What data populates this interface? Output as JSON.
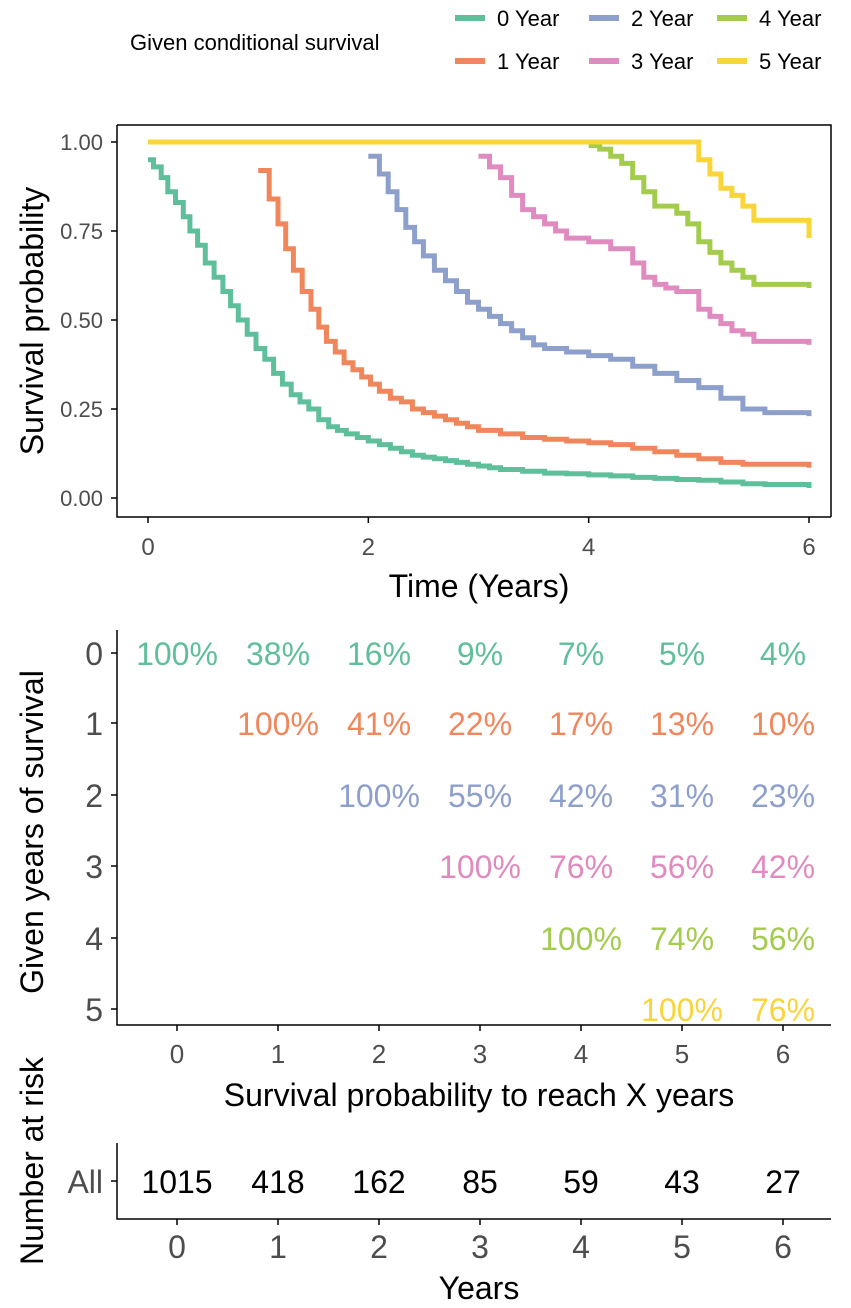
{
  "colors": {
    "c0": "#5fbf9b",
    "c1": "#ef865c",
    "c2": "#8d9fcb",
    "c3": "#e08bc0",
    "c4": "#a3cc4f",
    "c5": "#f9d43a",
    "axis": "#000000",
    "tick_label": "#4d4d4d"
  },
  "chart_data": [
    {
      "type": "line",
      "subtype": "step",
      "title": "",
      "legend": {
        "title": "Given conditional survival",
        "position": "top",
        "entries": [
          "0 Year",
          "1 Year",
          "2 Year",
          "3 Year",
          "4 Year",
          "5 Year"
        ]
      },
      "xlabel": "Time (Years)",
      "ylabel": "Survival probability",
      "xlim": [
        -0.3,
        6.3
      ],
      "ylim": [
        -0.05,
        1.05
      ],
      "xticks": [
        0,
        2,
        4,
        6
      ],
      "xtick_labels": [
        "0",
        "2",
        "4",
        "6"
      ],
      "yticks": [
        0,
        0.25,
        0.5,
        0.75,
        1
      ],
      "ytick_labels": [
        "0.00",
        "0.25",
        "0.50",
        "0.75",
        "1.00"
      ],
      "grid": false,
      "series": [
        {
          "name": "0 Year",
          "x": [
            0.0,
            0.05,
            0.12,
            0.18,
            0.25,
            0.32,
            0.38,
            0.45,
            0.52,
            0.6,
            0.68,
            0.75,
            0.82,
            0.9,
            0.98,
            1.06,
            1.14,
            1.22,
            1.3,
            1.38,
            1.46,
            1.55,
            1.64,
            1.72,
            1.8,
            1.9,
            2.0,
            2.1,
            2.2,
            2.3,
            2.4,
            2.5,
            2.6,
            2.7,
            2.8,
            2.9,
            3.0,
            3.1,
            3.2,
            3.4,
            3.6,
            3.8,
            4.0,
            4.2,
            4.4,
            4.6,
            4.8,
            5.0,
            5.2,
            5.4,
            5.6,
            5.8,
            6.0
          ],
          "y": [
            0.95,
            0.93,
            0.9,
            0.86,
            0.83,
            0.79,
            0.75,
            0.71,
            0.66,
            0.62,
            0.58,
            0.54,
            0.5,
            0.46,
            0.42,
            0.39,
            0.35,
            0.32,
            0.29,
            0.27,
            0.25,
            0.22,
            0.2,
            0.19,
            0.18,
            0.17,
            0.16,
            0.15,
            0.14,
            0.13,
            0.12,
            0.115,
            0.11,
            0.105,
            0.1,
            0.095,
            0.09,
            0.085,
            0.08,
            0.075,
            0.07,
            0.068,
            0.065,
            0.062,
            0.058,
            0.055,
            0.052,
            0.05,
            0.045,
            0.04,
            0.038,
            0.038,
            0.038
          ]
        },
        {
          "name": "1 Year",
          "x": [
            1.0,
            1.1,
            1.18,
            1.25,
            1.32,
            1.4,
            1.48,
            1.55,
            1.62,
            1.7,
            1.78,
            1.86,
            1.94,
            2.02,
            2.1,
            2.2,
            2.3,
            2.4,
            2.5,
            2.6,
            2.7,
            2.8,
            2.9,
            3.0,
            3.2,
            3.4,
            3.6,
            3.8,
            4.0,
            4.2,
            4.4,
            4.6,
            4.8,
            5.0,
            5.2,
            5.4,
            5.6,
            6.0
          ],
          "y": [
            0.92,
            0.84,
            0.77,
            0.7,
            0.64,
            0.58,
            0.53,
            0.48,
            0.44,
            0.41,
            0.38,
            0.36,
            0.34,
            0.32,
            0.3,
            0.28,
            0.27,
            0.25,
            0.24,
            0.23,
            0.22,
            0.21,
            0.2,
            0.19,
            0.18,
            0.17,
            0.165,
            0.16,
            0.155,
            0.15,
            0.14,
            0.13,
            0.12,
            0.11,
            0.1,
            0.095,
            0.095,
            0.095
          ]
        },
        {
          "name": "2 Year",
          "x": [
            2.0,
            2.1,
            2.18,
            2.26,
            2.34,
            2.42,
            2.5,
            2.6,
            2.7,
            2.8,
            2.9,
            3.0,
            3.1,
            3.2,
            3.3,
            3.4,
            3.5,
            3.6,
            3.8,
            4.0,
            4.2,
            4.4,
            4.6,
            4.8,
            5.0,
            5.2,
            5.4,
            5.6,
            6.0
          ],
          "y": [
            0.96,
            0.91,
            0.86,
            0.81,
            0.76,
            0.72,
            0.68,
            0.64,
            0.61,
            0.58,
            0.55,
            0.53,
            0.51,
            0.49,
            0.47,
            0.45,
            0.43,
            0.42,
            0.41,
            0.4,
            0.39,
            0.37,
            0.35,
            0.33,
            0.31,
            0.28,
            0.25,
            0.24,
            0.24
          ]
        },
        {
          "name": "3 Year",
          "x": [
            3.0,
            3.1,
            3.2,
            3.3,
            3.4,
            3.5,
            3.6,
            3.7,
            3.8,
            4.0,
            4.2,
            4.4,
            4.5,
            4.6,
            4.7,
            4.8,
            5.0,
            5.1,
            5.2,
            5.3,
            5.4,
            5.5,
            5.6,
            6.0
          ],
          "y": [
            0.96,
            0.93,
            0.9,
            0.85,
            0.81,
            0.79,
            0.77,
            0.75,
            0.73,
            0.72,
            0.7,
            0.66,
            0.62,
            0.6,
            0.59,
            0.58,
            0.53,
            0.51,
            0.49,
            0.47,
            0.46,
            0.44,
            0.44,
            0.44
          ]
        },
        {
          "name": "4 Year",
          "x": [
            4.0,
            4.1,
            4.2,
            4.3,
            4.4,
            4.5,
            4.6,
            4.7,
            4.8,
            4.9,
            5.0,
            5.1,
            5.2,
            5.3,
            5.4,
            5.5,
            5.6,
            6.0
          ],
          "y": [
            0.99,
            0.98,
            0.96,
            0.94,
            0.9,
            0.86,
            0.82,
            0.82,
            0.8,
            0.77,
            0.72,
            0.69,
            0.66,
            0.64,
            0.62,
            0.6,
            0.6,
            0.6
          ]
        },
        {
          "name": "5 Year",
          "x": [
            0.0,
            5.0,
            5.1,
            5.2,
            5.3,
            5.4,
            5.5,
            5.6,
            6.0
          ],
          "y": [
            1.0,
            0.95,
            0.91,
            0.87,
            0.85,
            0.82,
            0.78,
            0.78,
            0.78
          ]
        }
      ]
    },
    {
      "type": "table",
      "title": "",
      "xlabel": "Survival probability to reach X years",
      "ylabel": "Given years of survival",
      "columns": [
        "0",
        "1",
        "2",
        "3",
        "4",
        "5",
        "6"
      ],
      "rows": [
        {
          "label": "0",
          "cells": [
            {
              "col": 0,
              "text": "100%"
            },
            {
              "col": 1,
              "text": "38%"
            },
            {
              "col": 2,
              "text": "16%"
            },
            {
              "col": 3,
              "text": "9%"
            },
            {
              "col": 4,
              "text": "7%"
            },
            {
              "col": 5,
              "text": "5%"
            },
            {
              "col": 6,
              "text": "4%"
            }
          ]
        },
        {
          "label": "1",
          "cells": [
            {
              "col": 1,
              "text": "100%"
            },
            {
              "col": 2,
              "text": "41%"
            },
            {
              "col": 3,
              "text": "22%"
            },
            {
              "col": 4,
              "text": "17%"
            },
            {
              "col": 5,
              "text": "13%"
            },
            {
              "col": 6,
              "text": "10%"
            }
          ]
        },
        {
          "label": "2",
          "cells": [
            {
              "col": 2,
              "text": "100%"
            },
            {
              "col": 3,
              "text": "55%"
            },
            {
              "col": 4,
              "text": "42%"
            },
            {
              "col": 5,
              "text": "31%"
            },
            {
              "col": 6,
              "text": "23%"
            }
          ]
        },
        {
          "label": "3",
          "cells": [
            {
              "col": 3,
              "text": "100%"
            },
            {
              "col": 4,
              "text": "76%"
            },
            {
              "col": 5,
              "text": "56%"
            },
            {
              "col": 6,
              "text": "42%"
            }
          ]
        },
        {
          "label": "4",
          "cells": [
            {
              "col": 4,
              "text": "100%"
            },
            {
              "col": 5,
              "text": "74%"
            },
            {
              "col": 6,
              "text": "56%"
            }
          ]
        },
        {
          "label": "5",
          "cells": [
            {
              "col": 5,
              "text": "100%"
            },
            {
              "col": 6,
              "text": "76%"
            }
          ]
        }
      ]
    },
    {
      "type": "table",
      "title": "",
      "xlabel": "Years",
      "ylabel": "Number at risk",
      "columns": [
        "0",
        "1",
        "2",
        "3",
        "4",
        "5",
        "6"
      ],
      "row_label": "All",
      "values": [
        1015,
        418,
        162,
        85,
        59,
        43,
        27
      ]
    }
  ]
}
